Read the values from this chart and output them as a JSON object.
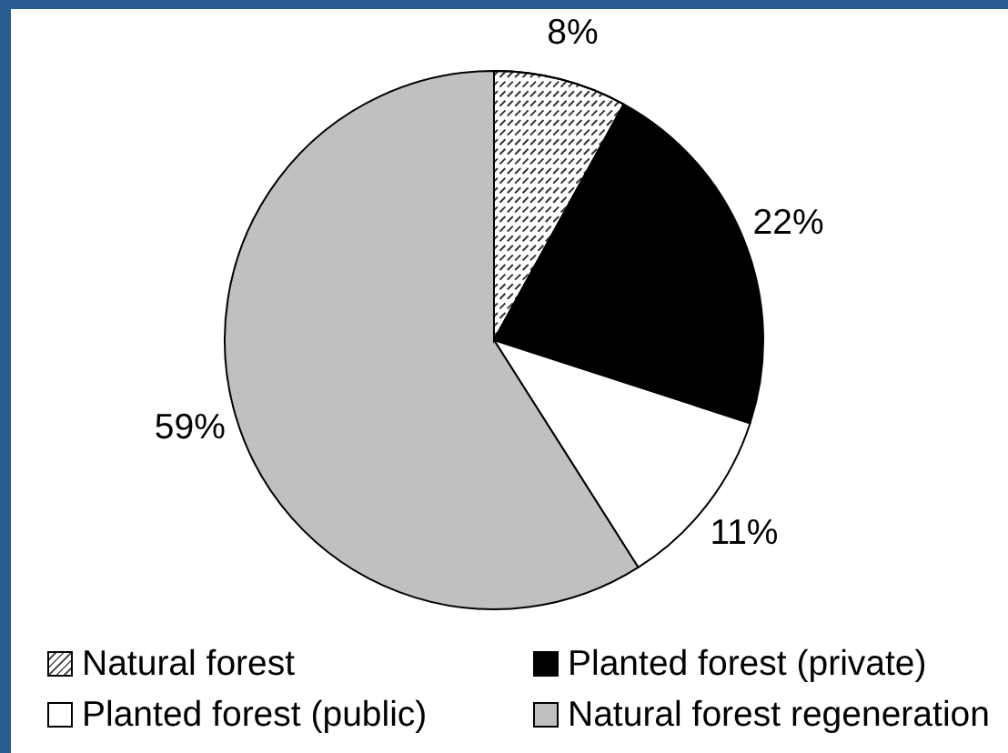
{
  "chart_data": {
    "type": "pie",
    "categories": [
      "Natural forest",
      "Planted forest (private)",
      "Planted forest (public)",
      "Natural forest regeneration"
    ],
    "values": [
      8,
      22,
      11,
      59
    ],
    "colors": [
      "#ffffff",
      "#000000",
      "#ffffff",
      "#c0c0c0"
    ],
    "value_labels": [
      "8%",
      "22%",
      "11%",
      "59%"
    ],
    "legend": "bottom"
  }
}
